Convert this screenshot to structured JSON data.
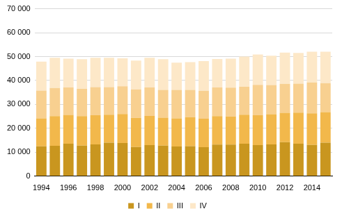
{
  "chart_data": {
    "type": "bar",
    "stacked": true,
    "grid": true,
    "legend": "bottom",
    "categories": [
      "1994",
      null,
      "1996",
      null,
      "1998",
      null,
      "2000",
      null,
      "2002",
      null,
      "2004",
      null,
      "2006",
      null,
      "2008",
      null,
      "2010",
      null,
      "2012",
      null,
      "2014",
      null
    ],
    "series": [
      {
        "name": "I",
        "color": "#c9961f",
        "values": [
          12500,
          12700,
          13600,
          12800,
          13300,
          14000,
          13900,
          12200,
          13000,
          12800,
          12400,
          12600,
          12100,
          13200,
          13200,
          13600,
          13000,
          13300,
          14200,
          13600,
          13100,
          14000
        ]
      },
      {
        "name": "II",
        "color": "#f2b84b",
        "values": [
          11700,
          12400,
          12000,
          12300,
          12200,
          11700,
          12100,
          12200,
          12200,
          11700,
          11800,
          12100,
          11900,
          11900,
          11800,
          12100,
          12500,
          12600,
          12300,
          13000,
          13200,
          12800
        ]
      },
      {
        "name": "III",
        "color": "#f8d090",
        "values": [
          11600,
          11800,
          11500,
          11400,
          11700,
          11500,
          11600,
          11900,
          11900,
          11600,
          11900,
          11400,
          11700,
          12000,
          12000,
          11700,
          12700,
          12200,
          12100,
          12100,
          12900,
          12100
        ]
      },
      {
        "name": "IV",
        "color": "#fde8c8",
        "values": [
          12100,
          12600,
          12000,
          12400,
          12300,
          12300,
          11700,
          12000,
          12400,
          12800,
          11400,
          11600,
          12400,
          11900,
          12100,
          12600,
          12700,
          12300,
          13100,
          12800,
          12800,
          13100
        ]
      }
    ],
    "ylim": [
      0,
      70000
    ],
    "yticks": [
      0,
      {
        "value": 10000,
        "label": "10 000"
      },
      {
        "value": 20000,
        "label": "20 000"
      },
      {
        "value": 30000,
        "label": "30 000"
      },
      {
        "value": 40000,
        "label": "40 000"
      },
      {
        "value": 50000,
        "label": "50 000"
      },
      {
        "value": 60000,
        "label": "60 000"
      },
      {
        "value": 70000,
        "label": "70 000"
      }
    ]
  }
}
